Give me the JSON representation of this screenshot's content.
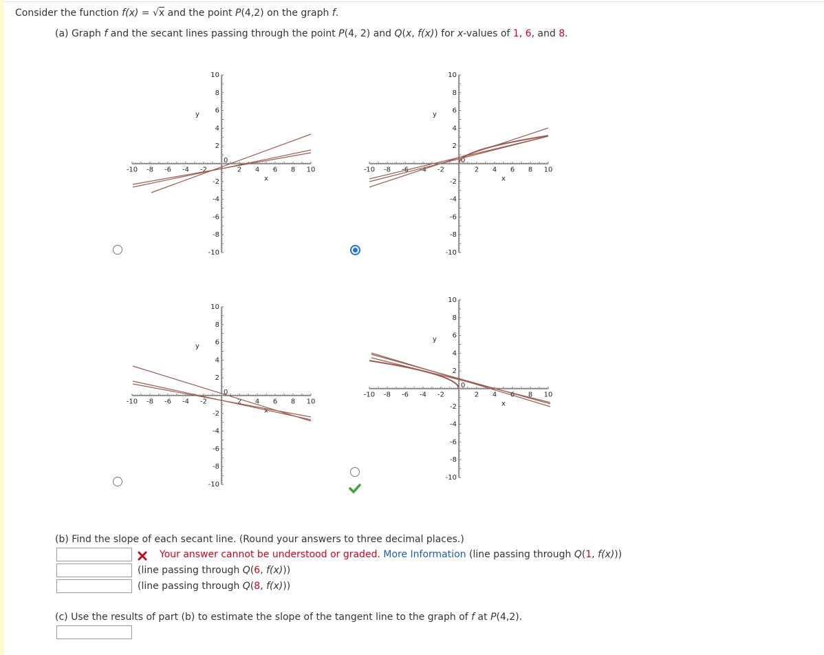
{
  "intro": [
    "Consider the function ",
    "f(x)",
    " = √",
    "x",
    " and the point ",
    "P",
    "(4,2) on the graph ",
    "f",
    "."
  ],
  "part_a": [
    "(a) Graph ",
    "f",
    " and the secant lines passing through the point ",
    "P",
    "(4, 2) and ",
    "Q",
    "(",
    "x",
    ", ",
    "f(x)",
    ") for ",
    "x",
    "-values of ",
    "1",
    ", ",
    "6",
    ", and ",
    "8",
    "."
  ],
  "graph_axes": {
    "ticks": [
      -10,
      -8,
      -6,
      -4,
      -2,
      2,
      4,
      6,
      8,
      10
    ],
    "zero": 0,
    "x_label": "x",
    "y_label": "y"
  },
  "part_b": "(b) Find the slope of each secant line. (Round your answers to three decimal places.)",
  "error": "Your answer cannot be understood or graded.",
  "more_info": "More Information",
  "secant_rows": [
    {
      "before": "(line passing through ",
      "q": "Q",
      "open": "(",
      "x": "1",
      "after": ", ",
      "fx": "f(x)",
      "end": "))"
    },
    {
      "before": "(line passing through ",
      "q": "Q",
      "open": "(",
      "x": "6",
      "after": ", ",
      "fx": "f(x)",
      "end": "))"
    },
    {
      "before": "(line passing through ",
      "q": "Q",
      "open": "(",
      "x": "8",
      "after": ", ",
      "fx": "f(x)",
      "end": "))"
    }
  ],
  "part_c": [
    "(c) Use the results of part (b) to estimate the slope of the tangent line to the graph of ",
    "f",
    " at ",
    "P",
    "(4,2)."
  ]
}
